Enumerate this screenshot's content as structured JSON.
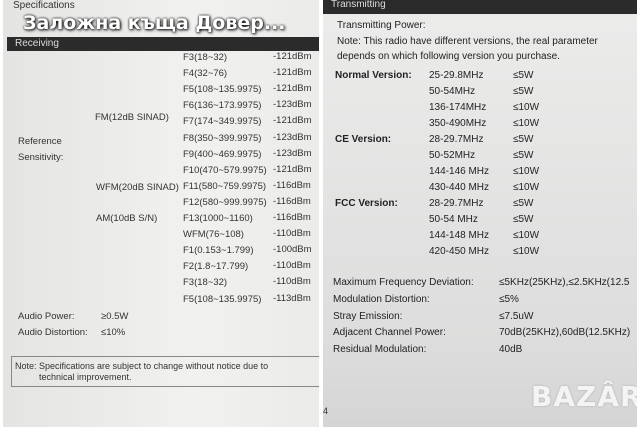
{
  "overlay_title": "Заложна къща Довер...",
  "left": {
    "title": "Specifications",
    "section": "Receiving",
    "ref_label": [
      "Reference",
      "Sensitivity:"
    ],
    "groups": {
      "fm": "FM(12dB SINAD)",
      "wfm": "WFM(20dB SINAD)",
      "am": "AM(10dB S/N)"
    },
    "rows": [
      {
        "band": "F3(18~32)",
        "value": "-121dBm"
      },
      {
        "band": "F4(32~76)",
        "value": "-121dBm"
      },
      {
        "band": "F5(108~135.9975)",
        "value": "-121dBm"
      },
      {
        "band": "F6(136~173.9975)",
        "value": "-123dBm"
      },
      {
        "band": "F7(174~349.9975)",
        "value": "-121dBm"
      },
      {
        "band": "F8(350~399.9975)",
        "value": "-123dBm"
      },
      {
        "band": "F9(400~469.9975)",
        "value": "-123dBm"
      },
      {
        "band": "F10(470~579.9975)",
        "value": "-121dBm"
      },
      {
        "band": "F11(580~759.9975)",
        "value": "-116dBm"
      },
      {
        "band": "F12(580~999.9975)",
        "value": "-116dBm"
      },
      {
        "band": "F13(1000~1160)",
        "value": "-116dBm"
      },
      {
        "band": "WFM(76~108)",
        "value": "-110dBm"
      },
      {
        "band": "F1(0.153~1.799)",
        "value": "-100dBm"
      },
      {
        "band": "F2(1.8~17.799)",
        "value": "-110dBm"
      },
      {
        "band": "F3(18~32)",
        "value": "-110dBm"
      },
      {
        "band": "F5(108~135.9975)",
        "value": "-113dBm"
      }
    ],
    "audio_power_label": "Audio Power:",
    "audio_power": "≥0.5W",
    "audio_distortion_label": "Audio Distortion:",
    "audio_distortion": "≤10%",
    "note_line1": "Note: Specifications are subject to change without notice due to",
    "note_line2": "technical improvement."
  },
  "right": {
    "section": "Transmitting",
    "power_title": "Transmitting Power:",
    "note_line1": "Note: This radio have different versions, the real parameter",
    "note_line2": "depends on which following version you purchase.",
    "versions": [
      {
        "label": "Normal Version:",
        "rows": [
          [
            "25-29.8MHz",
            "≤5W"
          ],
          [
            "50-54MHz",
            "≤5W"
          ],
          [
            "136-174MHz",
            "≤10W"
          ],
          [
            "350-490MHz",
            "≤10W"
          ]
        ]
      },
      {
        "label": "CE Version:",
        "rows": [
          [
            "28-29.7MHz",
            "≤5W"
          ],
          [
            "50-52MHz",
            "≤5W"
          ],
          [
            "144-146 MHz",
            "≤10W"
          ],
          [
            "430-440 MHz",
            "≤10W"
          ]
        ]
      },
      {
        "label": "FCC Version:",
        "rows": [
          [
            "28-29.7MHz",
            "≤5W"
          ],
          [
            "50-54 MHz",
            "≤5W"
          ],
          [
            "144-148 MHz",
            "≤10W"
          ],
          [
            "420-450 MHz",
            "≤10W"
          ]
        ]
      }
    ],
    "specs": [
      {
        "label": "Maximum Frequency Deviation:",
        "value": "≤5KHz(25KHz),≤2.5KHz(12.5"
      },
      {
        "label": "Modulation Distortion:",
        "value": "≤5%"
      },
      {
        "label": "Stray Emission:",
        "value": "≤7.5uW"
      },
      {
        "label": "Adjacent Channel Power:",
        "value": "70dB(25KHz),60dB(12.5KHz)"
      },
      {
        "label": "Residual Modulation:",
        "value": "40dB"
      }
    ],
    "page_number": "4",
    "watermark": "BAZAR"
  }
}
